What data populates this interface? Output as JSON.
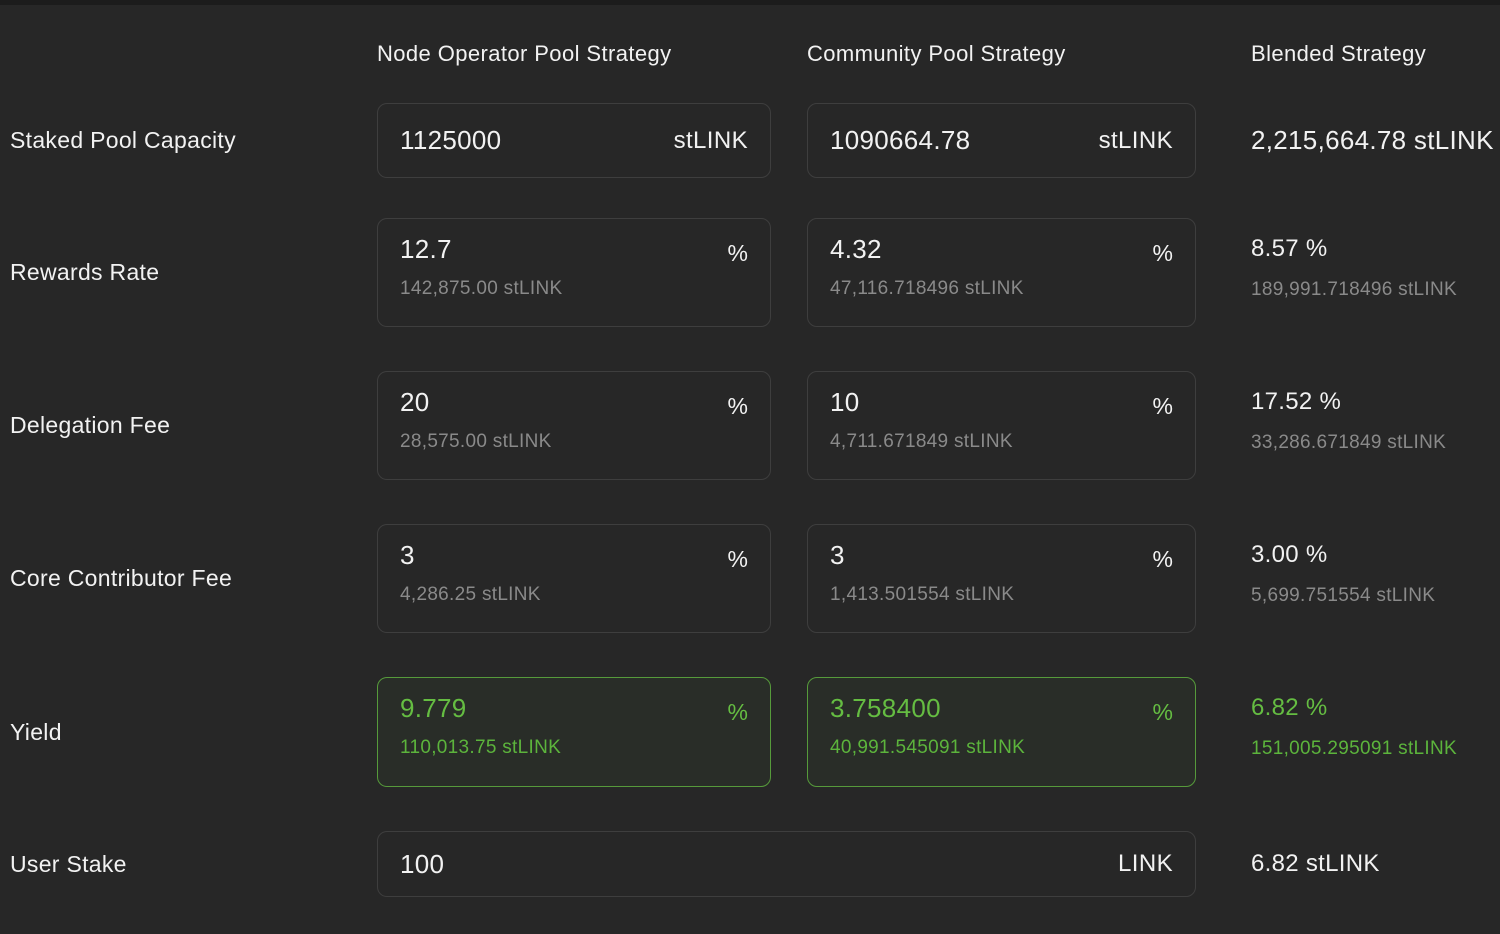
{
  "theme": {
    "background": "#272727",
    "text_primary": "#f2f2f2",
    "text_secondary": "#8a8a8a",
    "field_border": "#3e3e3e",
    "accent_green": "#65bd42",
    "accent_green_border": "#569a3b"
  },
  "headers": {
    "node": "Node Operator Pool Strategy",
    "community": "Community Pool Strategy",
    "blended": "Blended Strategy"
  },
  "rows": [
    {
      "label": "Staked Pool Capacity",
      "node": {
        "value": "1125000",
        "suffix": "stLINK"
      },
      "community": {
        "value": "1090664.78",
        "suffix": "stLINK"
      },
      "blended": {
        "value": "2,215,664.78 stLINK"
      }
    },
    {
      "label": "Rewards Rate",
      "node": {
        "value": "12.7",
        "suffix": "%",
        "subtext": "142,875.00 stLINK"
      },
      "community": {
        "value": "4.32",
        "suffix": "%",
        "subtext": "47,116.718496 stLINK"
      },
      "blended": {
        "value": "8.57 %",
        "subtext": "189,991.718496 stLINK"
      }
    },
    {
      "label": "Delegation Fee",
      "node": {
        "value": "20",
        "suffix": "%",
        "subtext": "28,575.00 stLINK"
      },
      "community": {
        "value": "10",
        "suffix": "%",
        "subtext": "4,711.671849 stLINK"
      },
      "blended": {
        "value": "17.52 %",
        "subtext": "33,286.671849 stLINK"
      }
    },
    {
      "label": "Core Contributor Fee",
      "node": {
        "value": "3",
        "suffix": "%",
        "subtext": "4,286.25 stLINK"
      },
      "community": {
        "value": "3",
        "suffix": "%",
        "subtext": "1,413.501554 stLINK"
      },
      "blended": {
        "value": "3.00 %",
        "subtext": "5,699.751554 stLINK"
      }
    },
    {
      "label": "Yield",
      "node": {
        "value": "9.779",
        "suffix": "%",
        "subtext": "110,013.75 stLINK"
      },
      "community": {
        "value": "3.758400",
        "suffix": "%",
        "subtext": "40,991.545091 stLINK"
      },
      "blended": {
        "value": "6.82 %",
        "subtext": "151,005.295091 stLINK"
      }
    },
    {
      "label": "User Stake",
      "input": {
        "value": "100",
        "suffix": "LINK"
      },
      "blended": {
        "value": "6.82 stLINK"
      }
    }
  ]
}
